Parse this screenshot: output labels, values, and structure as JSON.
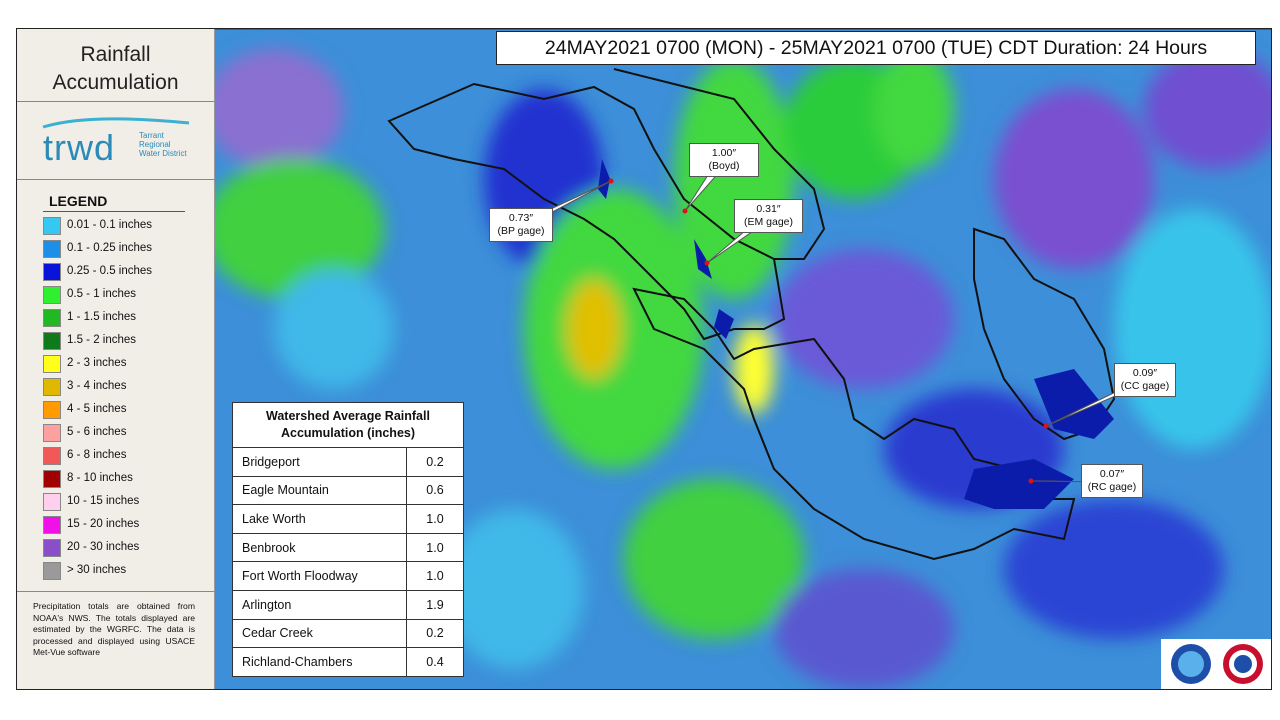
{
  "sidebar": {
    "title": "Rainfall Accumulation",
    "logo": {
      "name": "trwd",
      "subtitle": "Tarrant Regional Water District"
    },
    "legend": {
      "title": "LEGEND",
      "items": [
        {
          "label": "0.01 - 0.1 inches",
          "color": "#35c8f0"
        },
        {
          "label": "0.1 - 0.25 inches",
          "color": "#1e8fe8"
        },
        {
          "label": "0.25 - 0.5 inches",
          "color": "#0a14d8"
        },
        {
          "label": "0.5 - 1 inches",
          "color": "#2ef02e"
        },
        {
          "label": "1 - 1.5 inches",
          "color": "#22b822"
        },
        {
          "label": "1.5 - 2 inches",
          "color": "#0f7a1a"
        },
        {
          "label": "2 - 3 inches",
          "color": "#ffff1a"
        },
        {
          "label": "3 - 4 inches",
          "color": "#e0b800"
        },
        {
          "label": "4 - 5 inches",
          "color": "#ff9a00"
        },
        {
          "label": "5 - 6 inches",
          "color": "#ffa0a0"
        },
        {
          "label": "6 - 8 inches",
          "color": "#f25858"
        },
        {
          "label": "8 - 10 inches",
          "color": "#a00000"
        },
        {
          "label": "10 - 15 inches",
          "color": "#ffd0ee"
        },
        {
          "label": "15 - 20 inches",
          "color": "#f010e8"
        },
        {
          "label": "20 - 30 inches",
          "color": "#8a4fc8"
        },
        {
          "label": "> 30 inches",
          "color": "#9a9a9a"
        }
      ]
    },
    "note": "Precipitation totals are obtained from NOAA's NWS. The totals displayed are estimated by the WGRFC. The data is processed and displayed using USACE Met-Vue software"
  },
  "header": {
    "title": "24MAY2021 0700 (MON) - 25MAY2021 0700 (TUE) CDT Duration: 24 Hours"
  },
  "callouts": [
    {
      "value": "1.00″",
      "label": "(Boyd)"
    },
    {
      "value": "0.73″",
      "label": "(BP gage)"
    },
    {
      "value": "0.31″",
      "label": "(EM gage)"
    },
    {
      "value": "0.09″",
      "label": "(CC gage)"
    },
    {
      "value": "0.07″",
      "label": "(RC gage)"
    }
  ],
  "table": {
    "title": "Watershed Average Rainfall Accumulation (inches)",
    "rows": [
      [
        "Bridgeport",
        "0.2"
      ],
      [
        "Eagle Mountain",
        "0.6"
      ],
      [
        "Lake Worth",
        "1.0"
      ],
      [
        "Benbrook",
        "1.0"
      ],
      [
        "Fort Worth  Floodway",
        "1.0"
      ],
      [
        "Arlington",
        "1.9"
      ],
      [
        "Cedar Creek",
        "0.2"
      ],
      [
        "Richland-Chambers",
        "0.4"
      ]
    ]
  }
}
